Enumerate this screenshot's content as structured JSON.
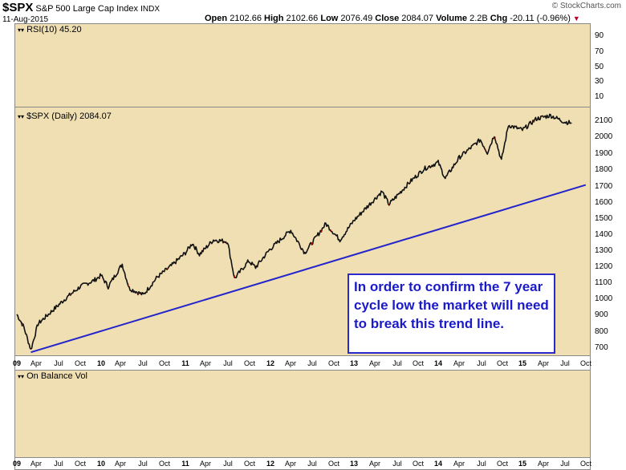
{
  "header": {
    "symbol": "$SPX",
    "name": "S&P 500 Large Cap Index",
    "exchange": "INDX",
    "date": "11-Aug-2015",
    "watermark": "© StockCharts.com",
    "quote": {
      "open_label": "Open",
      "open": "2102.66",
      "high_label": "High",
      "high": "2102.66",
      "low_label": "Low",
      "low": "2076.49",
      "close_label": "Close",
      "close": "2084.07",
      "volume_label": "Volume",
      "volume": "2.2B",
      "chg_label": "Chg",
      "chg": "-20.11 (-0.96%)"
    },
    "chg_arrow_icon": "down-triangle-icon",
    "chg_color": "#c0002a"
  },
  "rsi_panel": {
    "label": "RSI(10) 45.20",
    "ticks": [
      "90",
      "70",
      "50",
      "30",
      "10"
    ]
  },
  "price_panel": {
    "label": "$SPX (Daily) 2084.07",
    "ticks": [
      "2100",
      "2000",
      "1900",
      "1800",
      "1700",
      "1600",
      "1500",
      "1400",
      "1300",
      "1200",
      "1100",
      "1000",
      "900",
      "800",
      "700"
    ]
  },
  "obv_panel": {
    "label": "On Balance Vol"
  },
  "annotation": {
    "text": "In order to confirm the 7 year cycle low the market will need to break this trend line."
  },
  "x_axis": {
    "labels": [
      "09",
      "Apr",
      "Jul",
      "Oct",
      "10",
      "Apr",
      "Jul",
      "Oct",
      "11",
      "Apr",
      "Jul",
      "Oct",
      "12",
      "Apr",
      "Jul",
      "Oct",
      "13",
      "Apr",
      "Jul",
      "Oct",
      "14",
      "Apr",
      "Jul",
      "Oct",
      "15",
      "Apr",
      "Jul",
      "Oct"
    ]
  },
  "colors": {
    "panel_background": "#efdfb3",
    "price_line": "#111111",
    "trend_line": "#2424cc",
    "annotation_text": "#1a1ac8",
    "down_bar": "#cc0000"
  },
  "chart_data": {
    "type": "line",
    "title": "$SPX S&P 500 Large Cap Index INDX",
    "xlabel": "",
    "ylabel": "",
    "ylim": [
      650,
      2170
    ],
    "x_range": [
      "2009-01",
      "2015-10"
    ],
    "grid": true,
    "series": [
      {
        "name": "$SPX (Daily)",
        "x": [
          "2009-01",
          "2009-02",
          "2009-03",
          "2009-04",
          "2009-06",
          "2009-08",
          "2009-10",
          "2009-12",
          "2010-01",
          "2010-02",
          "2010-04",
          "2010-05",
          "2010-07",
          "2010-09",
          "2010-11",
          "2011-01",
          "2011-02",
          "2011-03",
          "2011-05",
          "2011-07",
          "2011-08",
          "2011-10",
          "2011-11",
          "2012-01",
          "2012-04",
          "2012-06",
          "2012-09",
          "2012-11",
          "2013-01",
          "2013-05",
          "2013-06",
          "2013-09",
          "2013-11",
          "2014-01",
          "2014-02",
          "2014-04",
          "2014-07",
          "2014-08",
          "2014-09",
          "2014-10",
          "2014-11",
          "2015-01",
          "2015-03",
          "2015-05",
          "2015-07",
          "2015-08"
        ],
        "values": [
          900,
          820,
          680,
          840,
          920,
          1000,
          1070,
          1110,
          1140,
          1070,
          1210,
          1060,
          1020,
          1130,
          1200,
          1280,
          1340,
          1270,
          1360,
          1350,
          1120,
          1230,
          1190,
          1300,
          1420,
          1280,
          1460,
          1360,
          1480,
          1660,
          1580,
          1720,
          1800,
          1840,
          1740,
          1870,
          1980,
          1900,
          2010,
          1850,
          2070,
          2040,
          2110,
          2130,
          2090,
          2084
        ]
      },
      {
        "name": "",
        "x": [
          "2009-03",
          "2015-10"
        ],
        "values": [
          665,
          1700
        ]
      }
    ]
  }
}
